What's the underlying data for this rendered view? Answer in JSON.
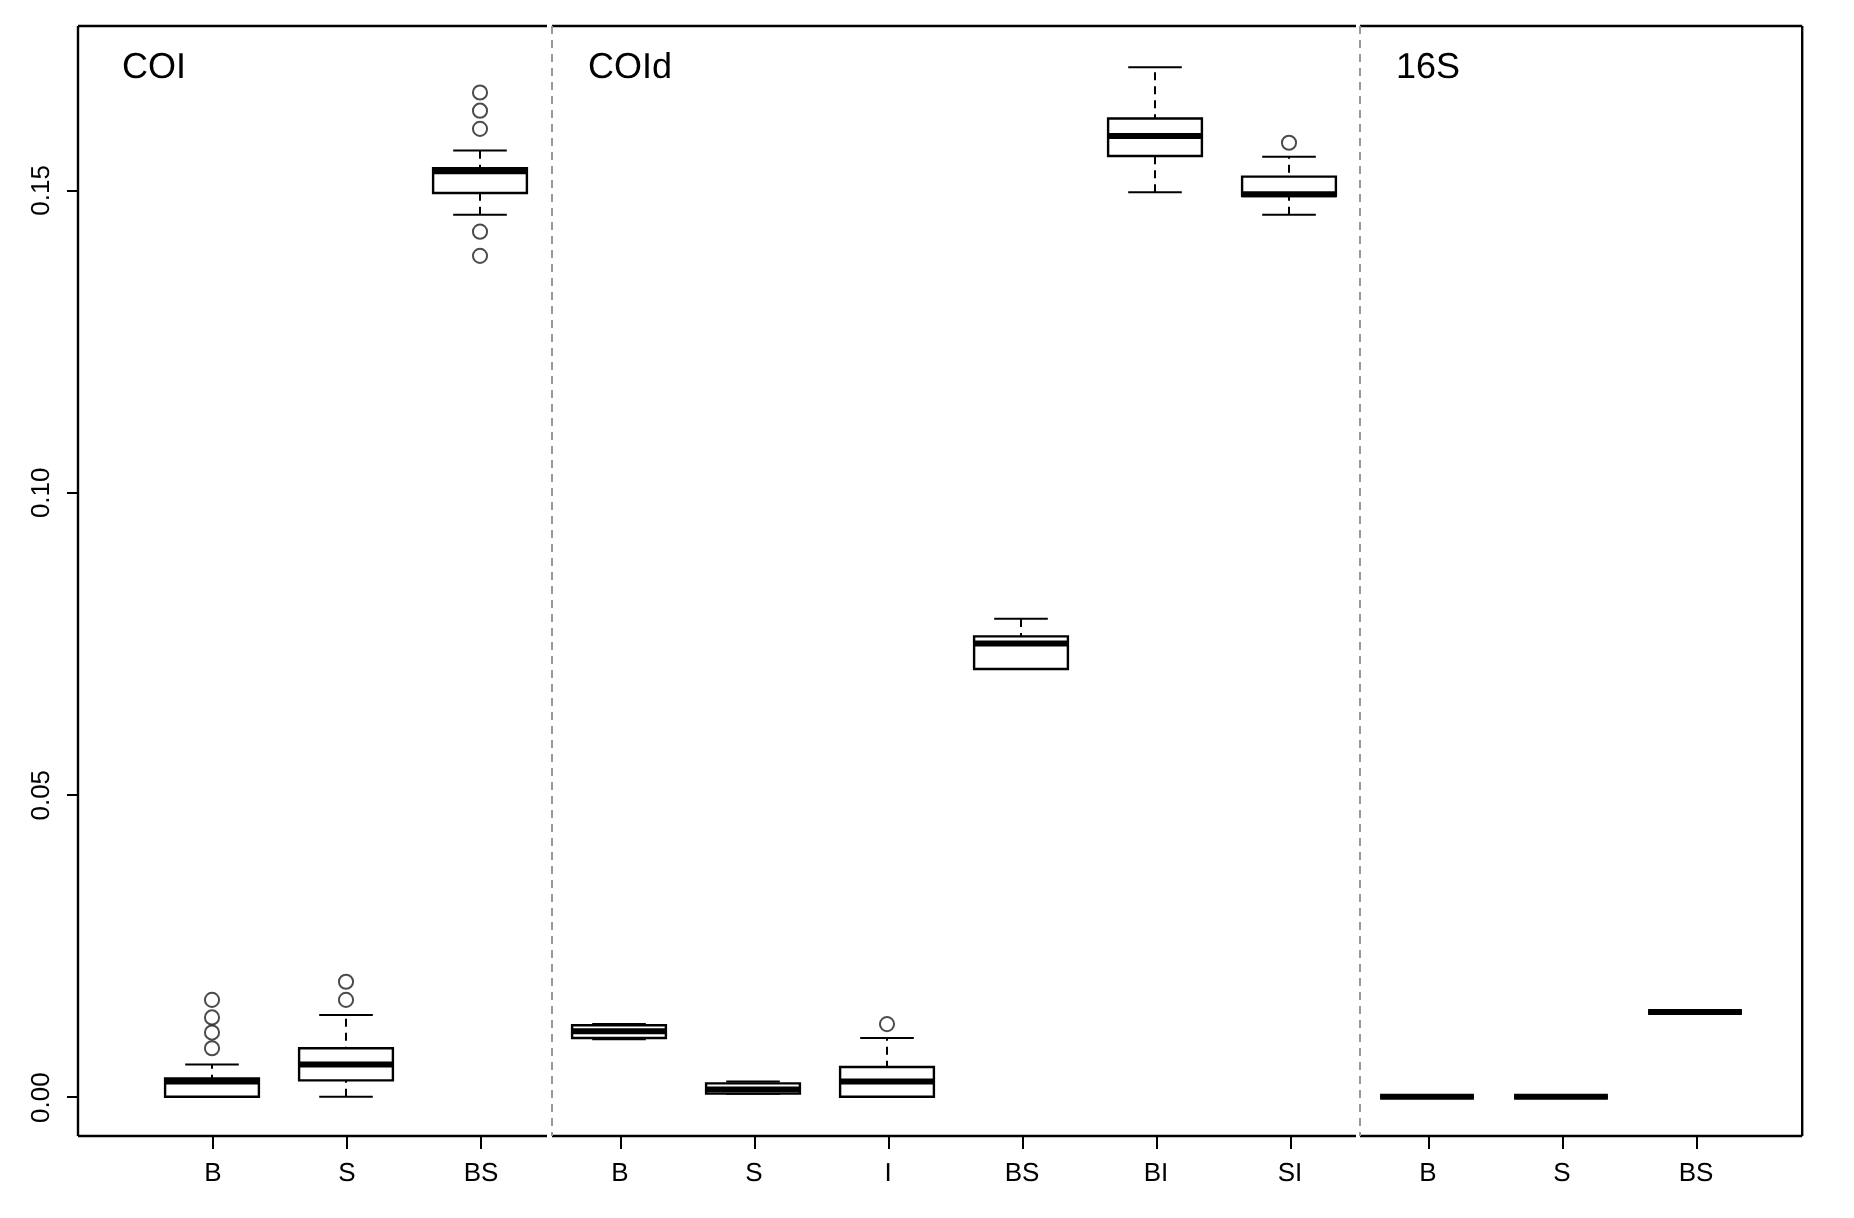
{
  "chart_data": [
    {
      "type": "box",
      "categories": [
        "B",
        "S",
        "BS"
      ],
      "boxes": [
        {
          "low": 0,
          "q1": 0,
          "median": 0.0025,
          "q3": 0.003,
          "high": 0.0053,
          "outliers": [
            0.008,
            0.0106,
            0.0131,
            0.016
          ]
        },
        {
          "low": 0,
          "q1": 0.0027,
          "median": 0.0053,
          "q3": 0.008,
          "high": 0.0135,
          "outliers": [
            0.016,
            0.019
          ]
        },
        {
          "low": 0.1458,
          "q1": 0.1494,
          "median": 0.153,
          "q3": 0.1535,
          "high": 0.1564,
          "outliers": [
            0.166,
            0.163,
            0.16,
            0.143,
            0.139
          ]
        }
      ],
      "ylim": [
        -0.0065,
        0.177
      ],
      "yticks": [
        {
          "value": 0,
          "label": "0.00"
        },
        {
          "value": 0.05,
          "label": "0.05"
        },
        {
          "value": 0.1,
          "label": "0.10"
        },
        {
          "value": 0.15,
          "label": "0.15"
        }
      ],
      "grid": false,
      "annotations": [
        "COI"
      ]
    },
    {
      "type": "box",
      "categories": [
        "B",
        "S",
        "I",
        "BS",
        "BI",
        "SI"
      ],
      "boxes": [
        {
          "low": 0.0095,
          "q1": 0.0097,
          "median": 0.0108,
          "q3": 0.0118,
          "high": 0.012
        },
        {
          "low": 0.0005,
          "q1": 0.0005,
          "median": 0.0012,
          "q3": 0.0022,
          "high": 0.0025
        },
        {
          "low": 0,
          "q1": 0,
          "median": 0.0025,
          "q3": 0.0049,
          "high": 0.0097,
          "outliers": [
            0.012
          ]
        },
        {
          "low": 0.0707,
          "q1": 0.0707,
          "median": 0.0749,
          "q3": 0.0761,
          "high": 0.079
        },
        {
          "low": 0.1495,
          "q1": 0.1555,
          "median": 0.1588,
          "q3": 0.1617,
          "high": 0.1702
        },
        {
          "low": 0.1458,
          "q1": 0.1489,
          "median": 0.1492,
          "q3": 0.1521,
          "high": 0.1554,
          "outliers": [
            0.1577
          ]
        }
      ],
      "ylim": [
        -0.0065,
        0.177
      ],
      "tick_labels": "x",
      "grid": false,
      "annotations": [
        "COId"
      ]
    },
    {
      "type": "box",
      "categories": [
        "B",
        "S",
        "BS"
      ],
      "boxes": [
        {
          "low": 0,
          "q1": 0,
          "median": 0,
          "q3": 0,
          "high": 0
        },
        {
          "low": 0,
          "q1": 0,
          "median": 0,
          "q3": 0,
          "high": 0
        },
        {
          "low": 0.014,
          "q1": 0.014,
          "median": 0.014,
          "q3": 0.014,
          "high": 0.014
        }
      ],
      "ylim": [
        -0.0065,
        0.177
      ],
      "tick_labels": "x",
      "grid": false,
      "annotations": [
        "16S"
      ]
    }
  ]
}
